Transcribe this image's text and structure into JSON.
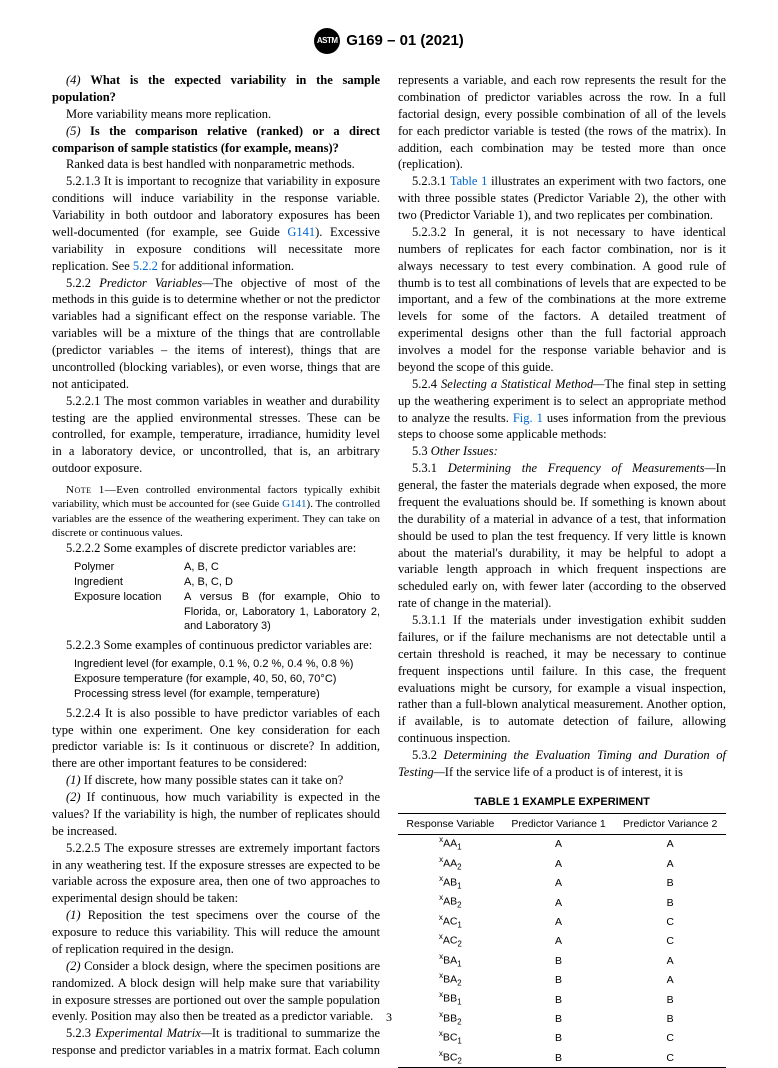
{
  "header": {
    "standard": "G169 – 01 (2021)"
  },
  "col1": {
    "q4": "(4)",
    "q4_text": "What is the expected variability in the sample population?",
    "q4_ans": "More variability means more replication.",
    "q5": "(5)",
    "q5_text": "Is the comparison relative (ranked) or a direct comparison of sample statistics (for example, means)?",
    "q5_ans": "Ranked data is best handled with nonparametric methods.",
    "p5213": "5.2.1.3 It is important to recognize that variability in exposure conditions will induce variability in the response variable. Variability in both outdoor and laboratory exposures has been well-documented (for example, see Guide ",
    "g141a": "G141",
    "p5213b": "). Excessive variability in exposure conditions will necessitate more replication. See ",
    "ref522": "5.2.2",
    "p5213c": " for additional information.",
    "p522a": "5.2.2 ",
    "p522title": "Predictor Variables—",
    "p522b": "The objective of most of the methods in this guide is to determine whether or not the predictor variables had a significant effect on the response variable. The variables will be a mixture of the things that are controllable (predictor variables – the items of interest), things that are uncontrolled (blocking variables), or even worse, things that are not anticipated.",
    "p5221": "5.2.2.1 The most common variables in weather and durability testing are the applied environmental stresses. These can be controlled, for example, temperature, irradiance, humidity level in a laboratory device, or uncontrolled, that is, an arbitrary outdoor exposure.",
    "note1_label": "Note 1—",
    "note1": "Even controlled environmental factors typically exhibit variability, which must be accounted for (see Guide ",
    "g141b": "G141",
    "note1b": "). The controlled variables are the essence of the weathering experiment. They can take on discrete or continuous values.",
    "p5222": "5.2.2.2 Some examples of discrete predictor variables are:",
    "table1": {
      "r1": {
        "c1": "Polymer",
        "c2": "A, B, C"
      },
      "r2": {
        "c1": "Ingredient",
        "c2": "A, B, C, D"
      },
      "r3": {
        "c1": "Exposure location",
        "c2": "A versus B (for example, Ohio to Florida, or, Laboratory 1, Laboratory 2, and Laboratory 3)"
      }
    },
    "p5223": "5.2.2.3 Some examples of continuous predictor variables are:",
    "list2": {
      "l1": "Ingredient level (for example, 0.1 %, 0.2 %, 0.4 %, 0.8 %)",
      "l2": "Exposure temperature (for example, 40, 50, 60, 70°C)",
      "l3": "Processing stress level (for example, temperature)"
    },
    "p5224": "5.2.2.4 It is also possible to have predictor variables of each type within one experiment. One key consideration for each predictor variable is: Is it continuous or discrete? In addition, there are other important features to be considered:",
    "i1n": "(1)",
    "i1": " If discrete, how many possible states can it take on?",
    "i2n": "(2)",
    "i2": " If continuous, how much variability is expected in the values? If the variability is high, the number of replicates should be increased.",
    "p5225": "5.2.2.5 The exposure stresses are extremely important factors in any weathering test. If the exposure stresses are expected to be variable across the exposure area, then one of two approaches to experimental design should be taken:",
    "o1n": "(1)",
    "o1": " Reposition the test specimens over the course of the exposure to reduce this variability. This will reduce the amount of replication required in the design.",
    "o2n": "(2)",
    "o2": " Consider a block design, where the specimen positions are randomized. A block design will help make sure that variability in exposure stresses are portioned out over the sample population evenly. Position may also then be treated as a predictor variable."
  },
  "col2": {
    "p523a": "5.2.3 ",
    "p523title": "Experimental Matrix—",
    "p523b": "It is traditional to summarize the response and predictor variables in a matrix format. Each column represents a variable, and each row represents the result for the combination of predictor variables across the row. In a full factorial design, every possible combination of all of the levels for each predictor variable is tested (the rows of the matrix). In addition, each combination may be tested more than once (replication).",
    "p5231a": "5.2.3.1 ",
    "tbl1ref": "Table 1",
    "p5231b": " illustrates an experiment with two factors, one with three possible states (Predictor Variable 2), the other with two (Predictor Variable 1), and two replicates per combination.",
    "p5232": "5.2.3.2 In general, it is not necessary to have identical numbers of replicates for each factor combination, nor is it always necessary to test every combination. A good rule of thumb is to test all combinations of levels that are expected to be important, and a few of the combinations at the more extreme levels for some of the factors. A detailed treatment of experimental designs other than the full factorial approach involves a model for the response variable behavior and is beyond the scope of this guide.",
    "p524a": "5.2.4 ",
    "p524title": "Selecting a Statistical Method—",
    "p524b": "The final step in setting up the weathering experiment is to select an appropriate method to analyze the results. ",
    "fig1ref": "Fig. 1",
    "p524c": " uses information from the previous steps to choose some applicable methods:",
    "p53a": "5.3 ",
    "p53title": "Other Issues:",
    "p531a": "5.3.1 ",
    "p531title": "Determining the Frequency of Measurements—",
    "p531b": "In general, the faster the materials degrade when exposed, the more frequent the evaluations should be. If something is known about the durability of a material in advance of a test, that information should be used to plan the test frequency. If very little is known about the material's durability, it may be helpful to adopt a variable length approach in which frequent inspections are scheduled early on, with fewer later (according to the observed rate of change in the material).",
    "p5311": "5.3.1.1 If the materials under investigation exhibit sudden failures, or if the failure mechanisms are not detectable until a certain threshold is reached, it may be necessary to continue frequent inspections until failure. In this case, the frequent evaluations might be cursory, for example a visual inspection, rather than a full-blown analytical measurement. Another option, if available, is to automate detection of failure, allowing continuous inspection.",
    "p532a": "5.3.2 ",
    "p532title": "Determining the Evaluation Timing and Duration of Testing—",
    "p532b": "If the service life of a product is of interest, it is"
  },
  "table": {
    "title": "TABLE 1 EXAMPLE EXPERIMENT",
    "headers": {
      "h1": "Response Variable",
      "h2": "Predictor Variance 1",
      "h3": "Predictor Variance 2"
    },
    "rows": [
      {
        "rv": "AA",
        "sub": "1",
        "p1": "A",
        "p2": "A"
      },
      {
        "rv": "AA",
        "sub": "2",
        "p1": "A",
        "p2": "A"
      },
      {
        "rv": "AB",
        "sub": "1",
        "p1": "A",
        "p2": "B"
      },
      {
        "rv": "AB",
        "sub": "2",
        "p1": "A",
        "p2": "B"
      },
      {
        "rv": "AC",
        "sub": "1",
        "p1": "A",
        "p2": "C"
      },
      {
        "rv": "AC",
        "sub": "2",
        "p1": "A",
        "p2": "C"
      },
      {
        "rv": "BA",
        "sub": "1",
        "p1": "B",
        "p2": "A"
      },
      {
        "rv": "BA",
        "sub": "2",
        "p1": "B",
        "p2": "A"
      },
      {
        "rv": "BB",
        "sub": "1",
        "p1": "B",
        "p2": "B"
      },
      {
        "rv": "BB",
        "sub": "2",
        "p1": "B",
        "p2": "B"
      },
      {
        "rv": "BC",
        "sub": "1",
        "p1": "B",
        "p2": "C"
      },
      {
        "rv": "BC",
        "sub": "2",
        "p1": "B",
        "p2": "C"
      }
    ]
  },
  "page": "3"
}
